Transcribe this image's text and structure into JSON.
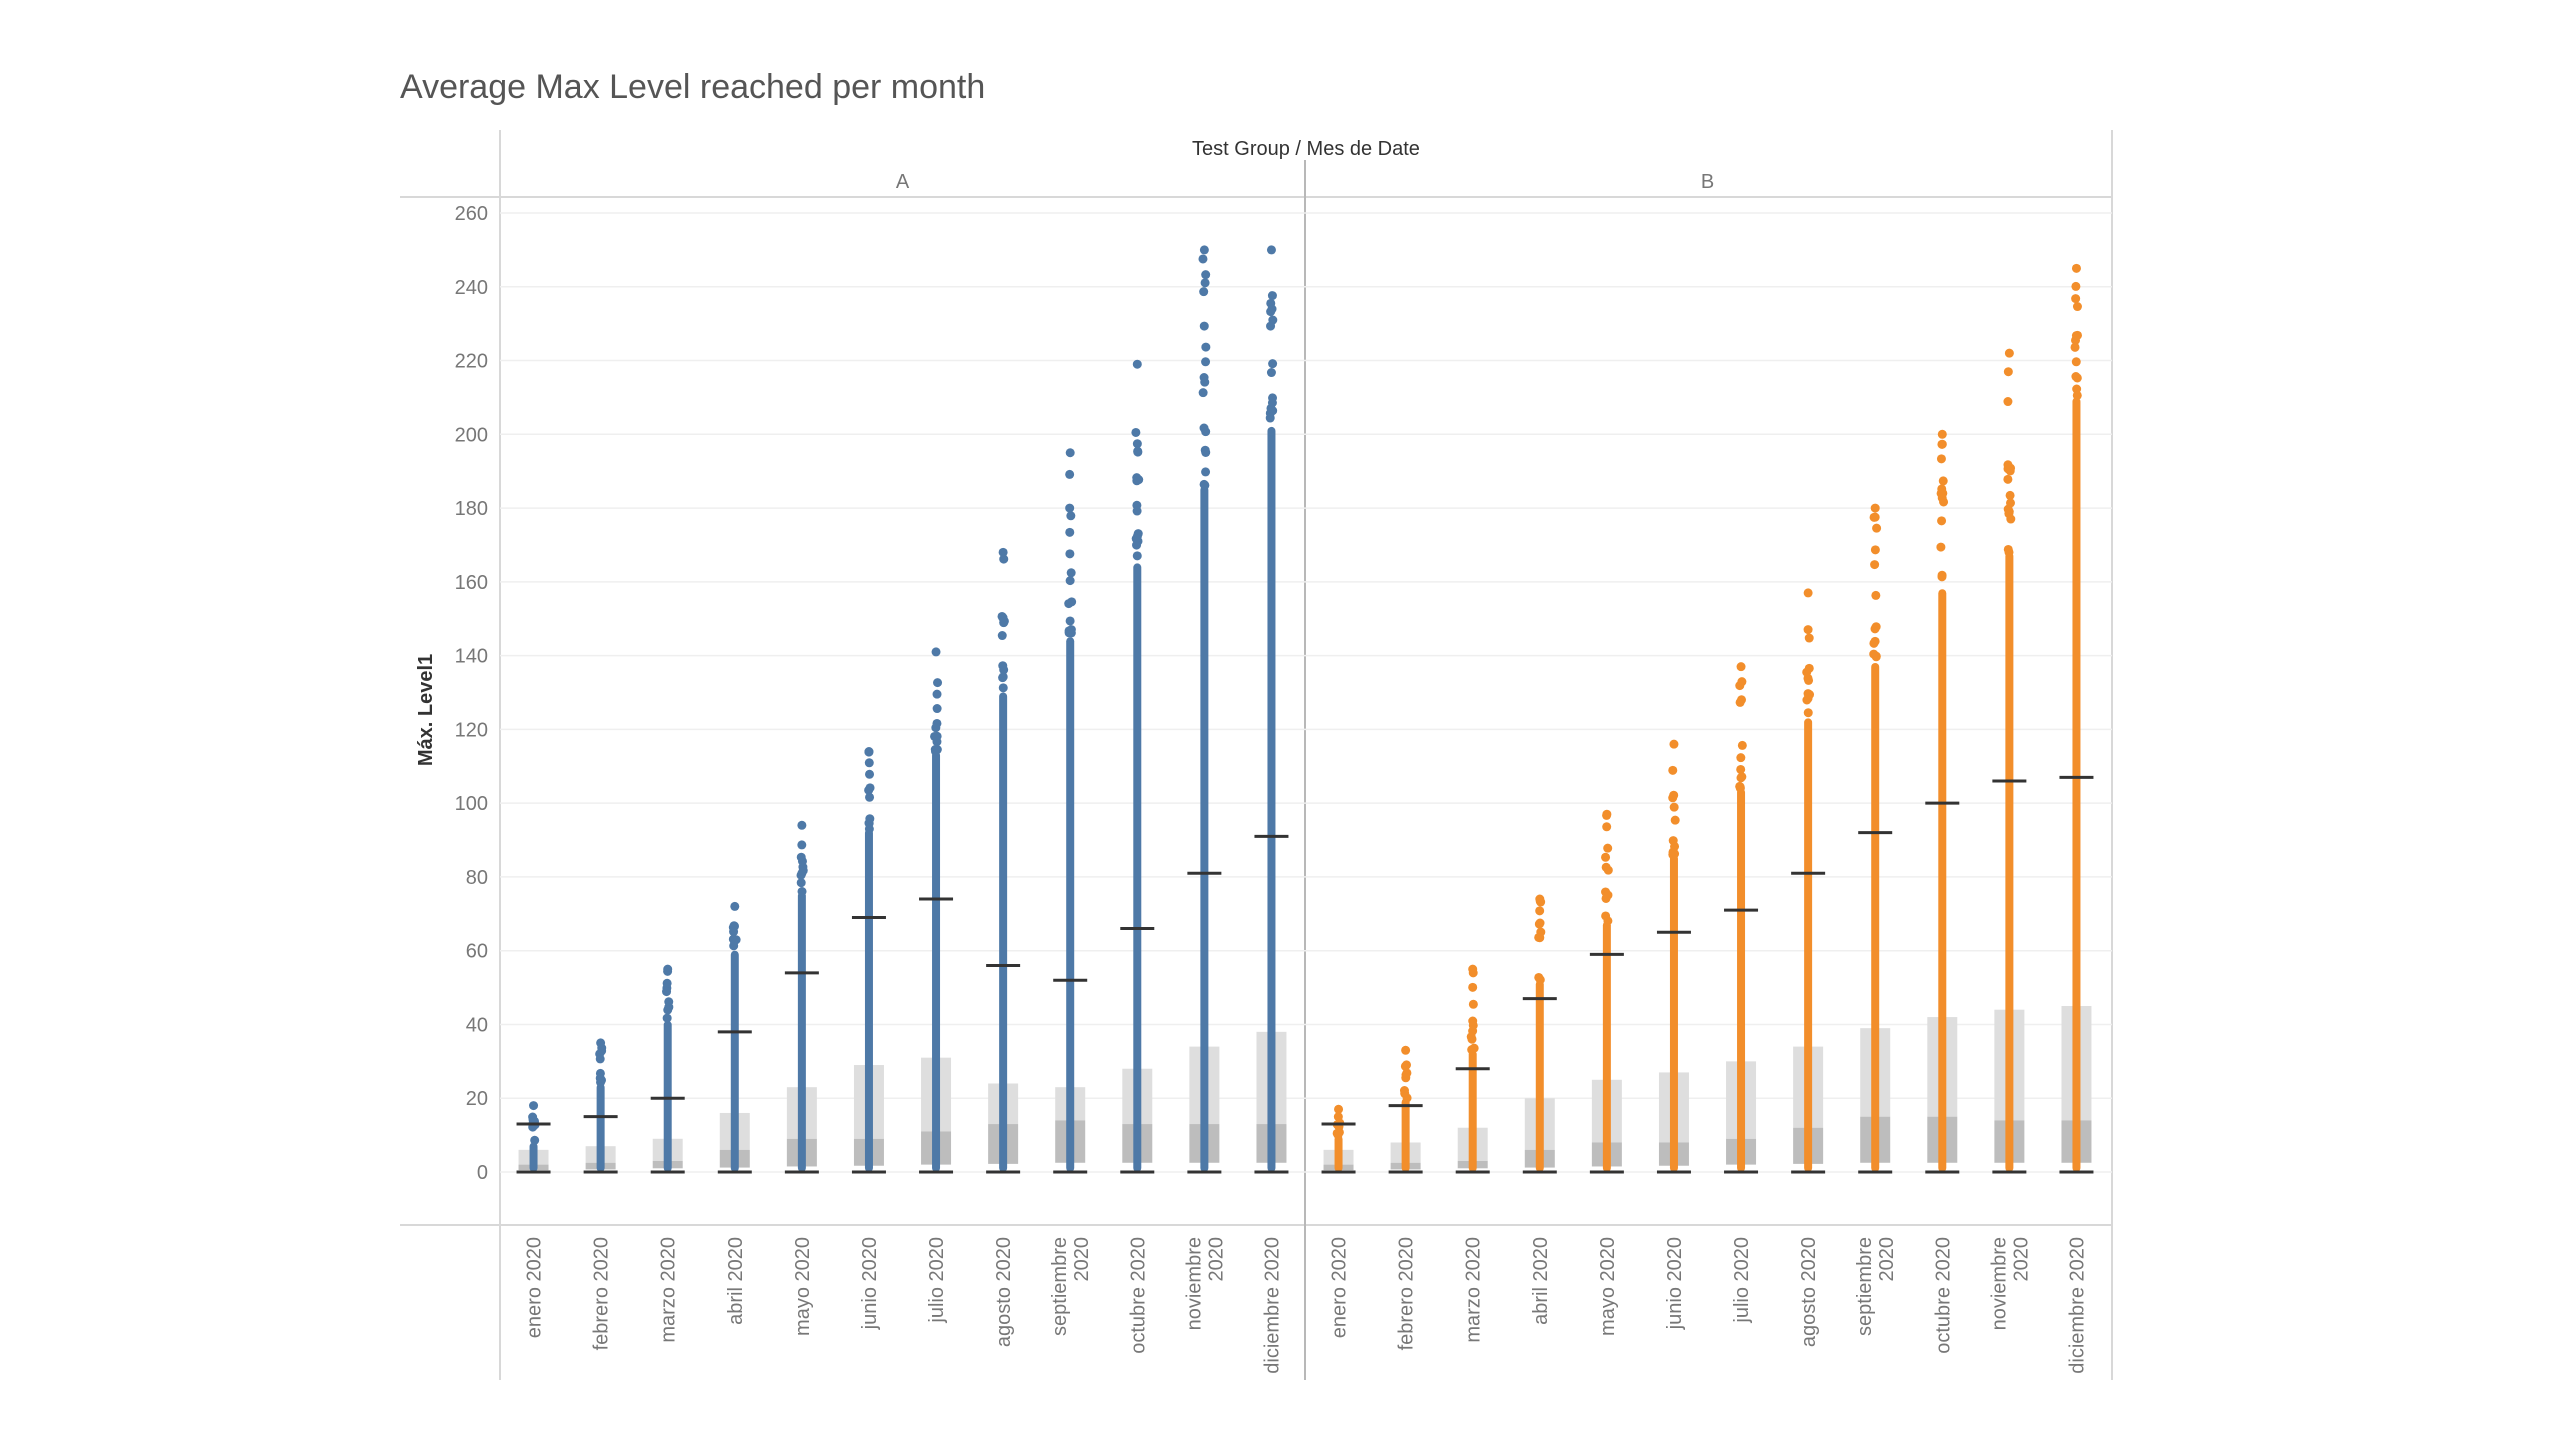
{
  "chart_data": {
    "type": "scatter",
    "title": "Average Max Level reached per month",
    "header_label": "Test Group  /  Mes de Date",
    "ylabel": "Máx. Level1",
    "ylim": [
      0,
      260
    ],
    "yticks": [
      0,
      20,
      40,
      60,
      80,
      100,
      120,
      140,
      160,
      180,
      200,
      220,
      240,
      260
    ],
    "grid": true,
    "categories": [
      [
        "enero 2020"
      ],
      [
        "febrero 2020"
      ],
      [
        "marzo 2020"
      ],
      [
        "abril 2020"
      ],
      [
        "mayo 2020"
      ],
      [
        "junio 2020"
      ],
      [
        "julio 2020"
      ],
      [
        "agosto 2020"
      ],
      [
        "septiembre",
        "2020"
      ],
      [
        "octubre 2020"
      ],
      [
        "noviembre",
        "2020"
      ],
      [
        "diciembre 2020"
      ]
    ],
    "panels": [
      {
        "name": "A",
        "color": "#4e79a7",
        "mean": [
          13,
          15,
          20,
          38,
          54,
          69,
          74,
          56,
          52,
          66,
          81,
          91
        ],
        "max": [
          18,
          35,
          55,
          72,
          94,
          114,
          141,
          168,
          195,
          219,
          250,
          250
        ],
        "dense": [
          8,
          24,
          41,
          60,
          76,
          93,
          114,
          130,
          145,
          165,
          186,
          202
        ],
        "q1": [
          0.5,
          0.7,
          1,
          1.2,
          1.5,
          1.7,
          2,
          2.2,
          2.5,
          2.5,
          2.5,
          2.5
        ],
        "median": [
          2,
          2.5,
          3,
          6,
          9,
          9,
          11,
          13,
          14,
          13,
          13,
          13
        ],
        "q3": [
          6,
          7,
          9,
          16,
          23,
          29,
          31,
          24,
          23,
          28,
          34,
          38
        ]
      },
      {
        "name": "B",
        "color": "#f28e2b",
        "mean": [
          13,
          18,
          28,
          47,
          59,
          65,
          71,
          81,
          92,
          100,
          106,
          107
        ],
        "max": [
          17,
          33,
          55,
          74,
          97,
          116,
          137,
          157,
          180,
          200,
          222,
          245
        ],
        "dense": [
          10,
          20,
          33,
          52,
          68,
          86,
          104,
          123,
          138,
          158,
          168,
          210
        ],
        "q1": [
          0.5,
          0.7,
          1,
          1.2,
          1.5,
          1.7,
          2,
          2.2,
          2.5,
          2.5,
          2.5,
          2.5
        ],
        "median": [
          2,
          2.5,
          3,
          6,
          8,
          8,
          9,
          12,
          15,
          15,
          14,
          14
        ],
        "q3": [
          6,
          8,
          12,
          20,
          25,
          27,
          30,
          34,
          39,
          42,
          44,
          45
        ]
      }
    ]
  }
}
